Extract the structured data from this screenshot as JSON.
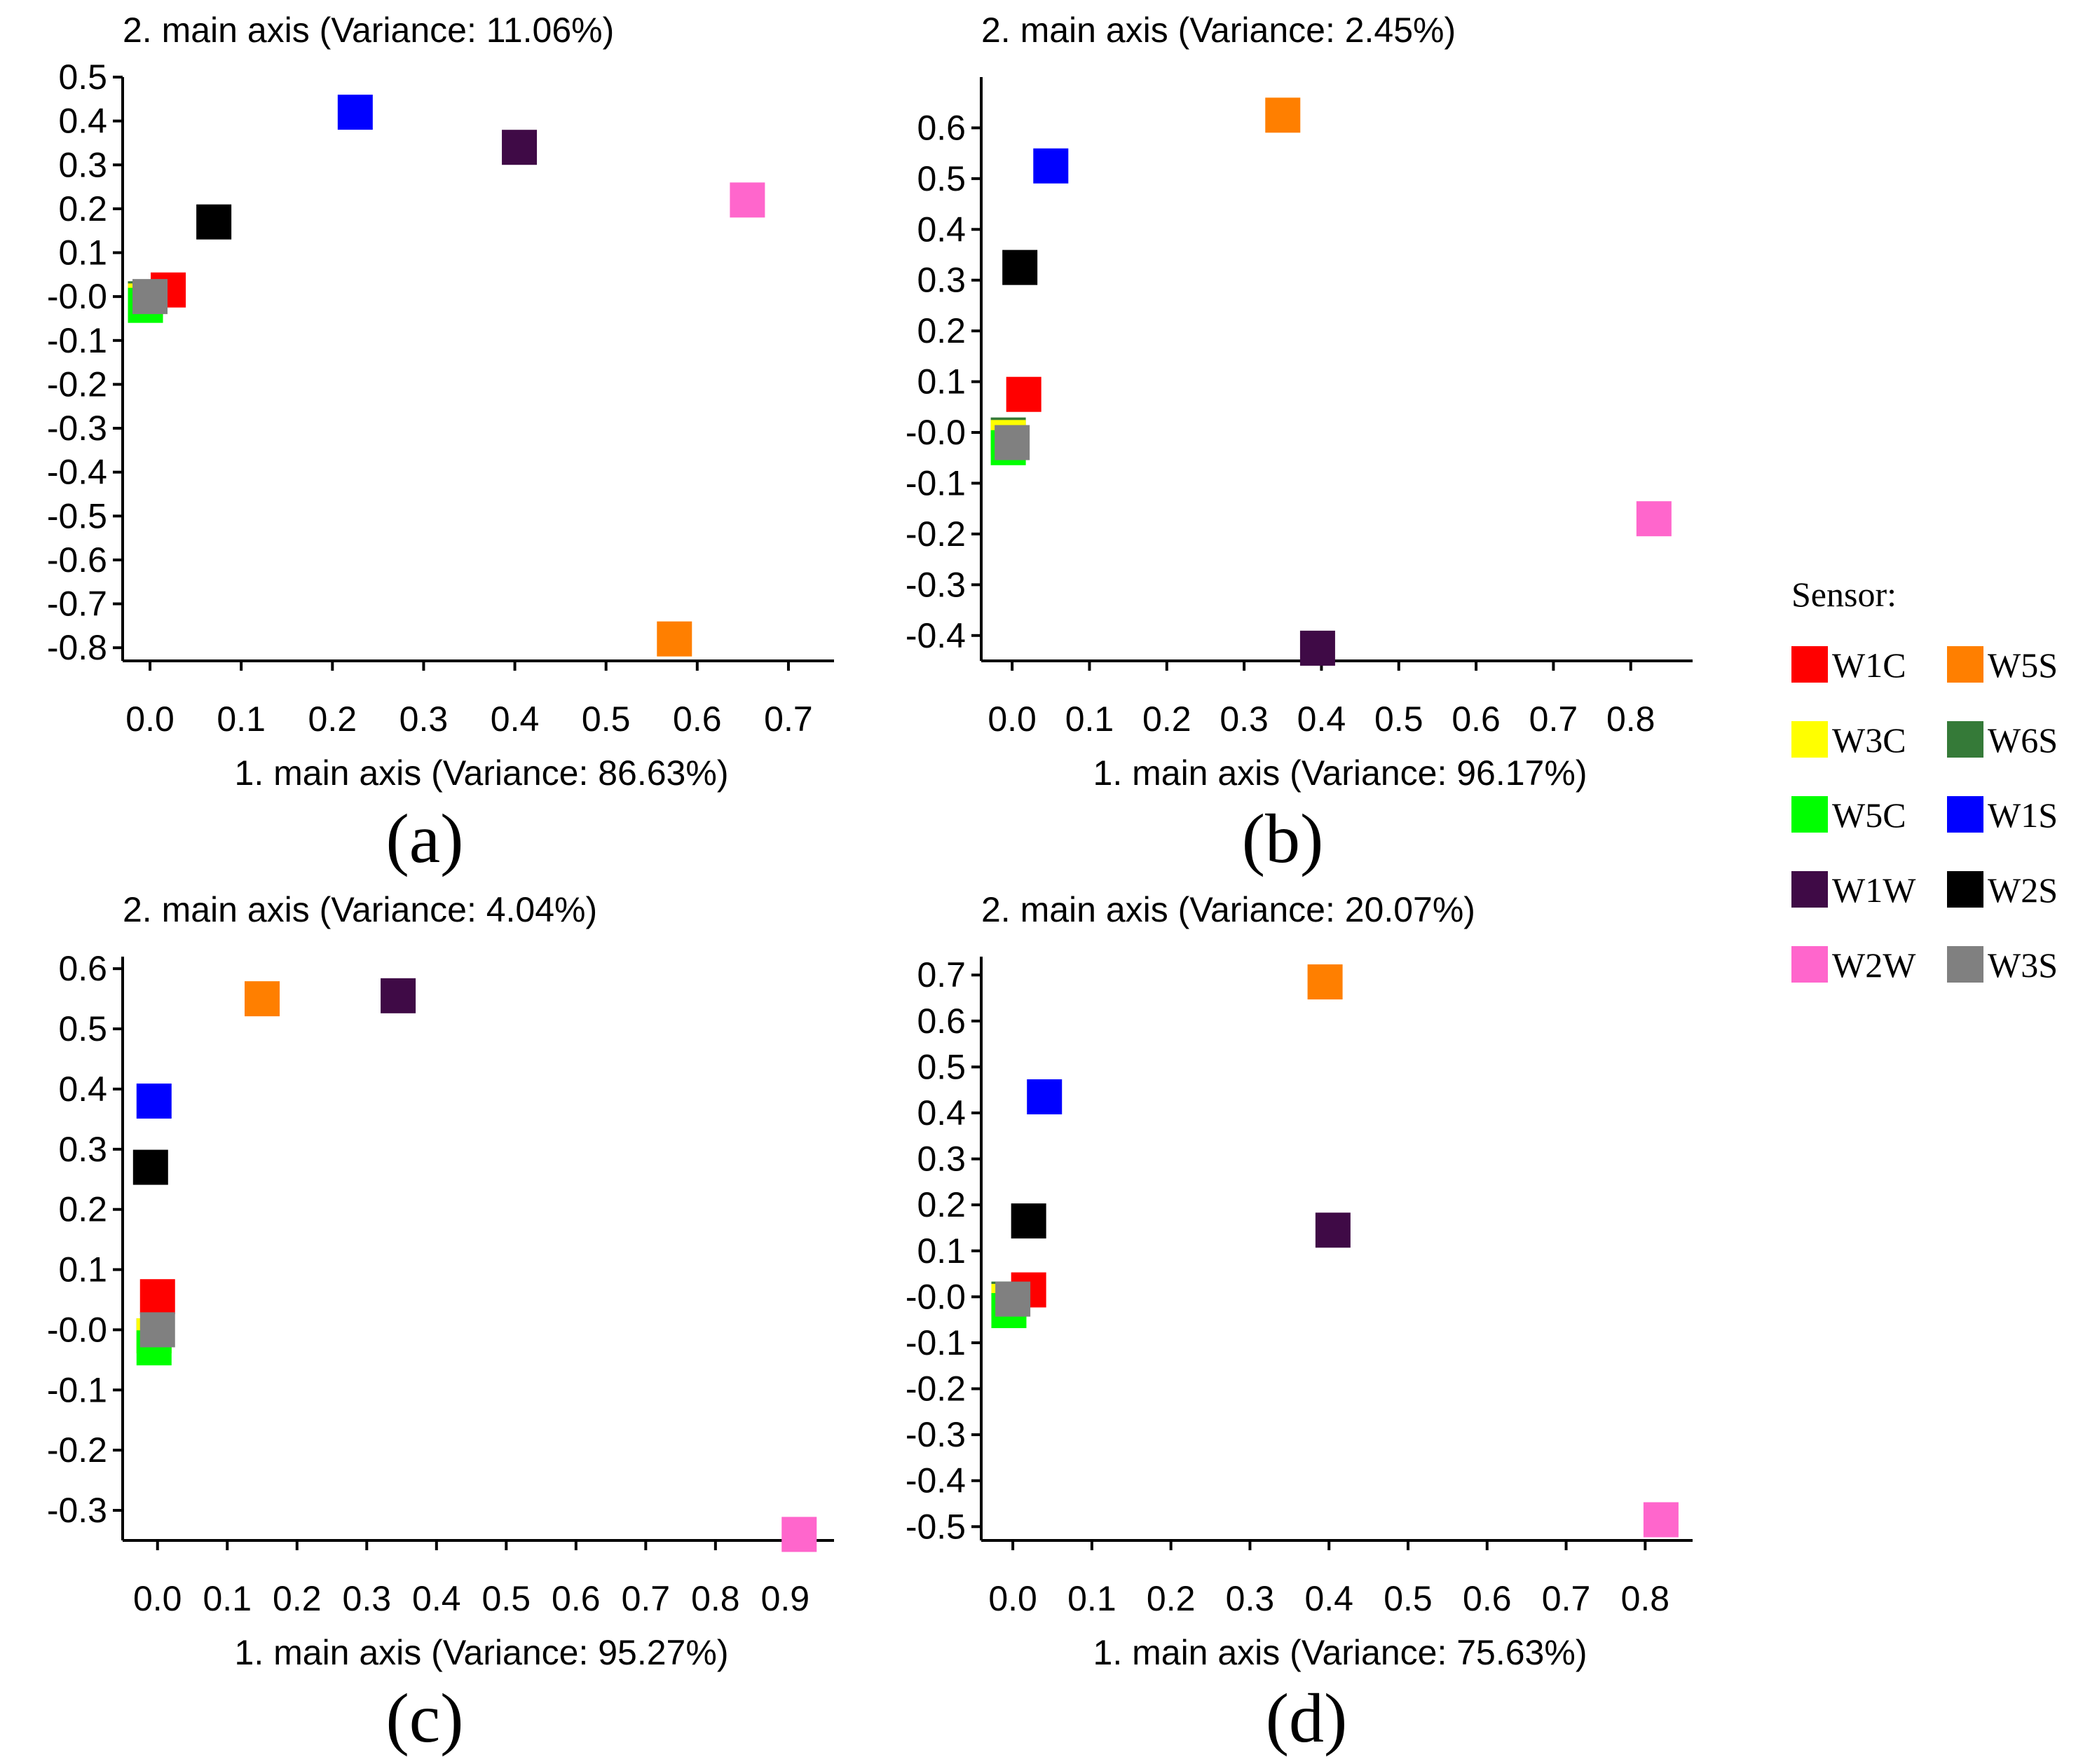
{
  "legend": {
    "title": "Sensor:",
    "items": [
      {
        "name": "W1C",
        "color": "#ff0000"
      },
      {
        "name": "W5S",
        "color": "#ff7f00"
      },
      {
        "name": "W3C",
        "color": "#ffff00"
      },
      {
        "name": "W6S",
        "color": "#357a38"
      },
      {
        "name": "W5C",
        "color": "#00ff00"
      },
      {
        "name": "W1S",
        "color": "#0000ff"
      },
      {
        "name": "W1W",
        "color": "#3f0a46"
      },
      {
        "name": "W2S",
        "color": "#000000"
      },
      {
        "name": "W2W",
        "color": "#ff66cc"
      },
      {
        "name": "W3S",
        "color": "#808080"
      }
    ]
  },
  "chart_data": [
    {
      "type": "scatter",
      "panel_label": "(a)",
      "title": "2. main axis (Variance: 11.06%)",
      "xlabel": "1. main axis (Variance: 86.63%)",
      "ylabel": "2. main axis (Variance: 11.06%)",
      "xlim": [
        -0.03,
        0.75
      ],
      "ylim": [
        -0.83,
        0.5
      ],
      "x_ticks": [
        0.0,
        0.1,
        0.2,
        0.3,
        0.4,
        0.5,
        0.6,
        0.7
      ],
      "x_tick_labels": [
        "0.0",
        "0.1",
        "0.2",
        "0.3",
        "0.4",
        "0.5",
        "0.6",
        "0.7"
      ],
      "y_ticks": [
        0.5,
        0.4,
        0.3,
        0.2,
        0.1,
        0.0,
        -0.1,
        -0.2,
        -0.3,
        -0.4,
        -0.5,
        -0.6,
        -0.7,
        -0.8
      ],
      "y_tick_labels": [
        "0.5",
        "0.4",
        "0.3",
        "0.2",
        "0.1",
        "-0.0",
        "-0.1",
        "-0.2",
        "-0.3",
        "-0.4",
        "-0.5",
        "-0.6",
        "-0.7",
        "-0.8"
      ],
      "points": [
        {
          "sensor": "W6S",
          "x": -0.005,
          "y": -0.005
        },
        {
          "sensor": "W3C",
          "x": -0.005,
          "y": -0.01
        },
        {
          "sensor": "W5C",
          "x": -0.005,
          "y": -0.02
        },
        {
          "sensor": "W1C",
          "x": 0.02,
          "y": 0.015
        },
        {
          "sensor": "W3S",
          "x": 0.0,
          "y": 0.0
        },
        {
          "sensor": "W2S",
          "x": 0.07,
          "y": 0.17
        },
        {
          "sensor": "W1S",
          "x": 0.225,
          "y": 0.42
        },
        {
          "sensor": "W1W",
          "x": 0.405,
          "y": 0.34
        },
        {
          "sensor": "W2W",
          "x": 0.655,
          "y": 0.22
        },
        {
          "sensor": "W5S",
          "x": 0.575,
          "y": -0.78
        }
      ]
    },
    {
      "type": "scatter",
      "panel_label": "(b)",
      "title": "2. main axis (Variance: 2.45%)",
      "xlabel": "1. main axis (Variance: 96.17%)",
      "ylabel": "2. main axis (Variance: 2.45%)",
      "xlim": [
        -0.04,
        0.88
      ],
      "ylim": [
        -0.45,
        0.7
      ],
      "x_ticks": [
        0.0,
        0.1,
        0.2,
        0.3,
        0.4,
        0.5,
        0.6,
        0.7,
        0.8
      ],
      "x_tick_labels": [
        "0.0",
        "0.1",
        "0.2",
        "0.3",
        "0.4",
        "0.5",
        "0.6",
        "0.7",
        "0.8"
      ],
      "y_ticks": [
        0.6,
        0.5,
        0.4,
        0.3,
        0.2,
        0.1,
        0.0,
        -0.1,
        -0.2,
        -0.3,
        -0.4
      ],
      "y_tick_labels": [
        "0.6",
        "0.5",
        "0.4",
        "0.3",
        "0.2",
        "0.1",
        "-0.0",
        "-0.1",
        "-0.2",
        "-0.3",
        "-0.4"
      ],
      "points": [
        {
          "sensor": "W6S",
          "x": -0.005,
          "y": -0.005
        },
        {
          "sensor": "W3C",
          "x": -0.005,
          "y": -0.01
        },
        {
          "sensor": "W5C",
          "x": -0.005,
          "y": -0.03
        },
        {
          "sensor": "W1C",
          "x": 0.015,
          "y": 0.075
        },
        {
          "sensor": "W3S",
          "x": 0.0,
          "y": -0.02
        },
        {
          "sensor": "W2S",
          "x": 0.01,
          "y": 0.325
        },
        {
          "sensor": "W1S",
          "x": 0.05,
          "y": 0.525
        },
        {
          "sensor": "W5S",
          "x": 0.35,
          "y": 0.625
        },
        {
          "sensor": "W2W",
          "x": 0.83,
          "y": -0.17
        },
        {
          "sensor": "W1W",
          "x": 0.395,
          "y": -0.425
        }
      ]
    },
    {
      "type": "scatter",
      "panel_label": "(c)",
      "title": "2. main axis (Variance: 4.04%)",
      "xlabel": "1. main axis (Variance: 95.27%)",
      "ylabel": "2. main axis (Variance: 4.04%)",
      "xlim": [
        -0.05,
        0.97
      ],
      "ylim": [
        -0.35,
        0.62
      ],
      "x_ticks": [
        0.0,
        0.1,
        0.2,
        0.3,
        0.4,
        0.5,
        0.6,
        0.7,
        0.8,
        0.9
      ],
      "x_tick_labels": [
        "0.0",
        "0.1",
        "0.2",
        "0.3",
        "0.4",
        "0.5",
        "0.6",
        "0.7",
        "0.8",
        "0.9"
      ],
      "y_ticks": [
        0.6,
        0.5,
        0.4,
        0.3,
        0.2,
        0.1,
        0.0,
        -0.1,
        -0.2,
        -0.3
      ],
      "y_tick_labels": [
        "0.6",
        "0.5",
        "0.4",
        "0.3",
        "0.2",
        "0.1",
        "-0.0",
        "-0.1",
        "-0.2",
        "-0.3"
      ],
      "points": [
        {
          "sensor": "W6S",
          "x": -0.005,
          "y": -0.01
        },
        {
          "sensor": "W3C",
          "x": -0.005,
          "y": -0.01
        },
        {
          "sensor": "W5C",
          "x": -0.005,
          "y": -0.03
        },
        {
          "sensor": "W1C",
          "x": 0.0,
          "y": 0.055
        },
        {
          "sensor": "W3S",
          "x": 0.0,
          "y": 0.0
        },
        {
          "sensor": "W2S",
          "x": -0.01,
          "y": 0.27
        },
        {
          "sensor": "W1S",
          "x": -0.005,
          "y": 0.38
        },
        {
          "sensor": "W5S",
          "x": 0.15,
          "y": 0.55
        },
        {
          "sensor": "W1W",
          "x": 0.345,
          "y": 0.555
        },
        {
          "sensor": "W2W",
          "x": 0.92,
          "y": -0.34
        }
      ]
    },
    {
      "type": "scatter",
      "panel_label": "(d)",
      "title": "2. main axis (Variance: 20.07%)",
      "xlabel": "1. main axis (Variance: 75.63%)",
      "ylabel": "2. main axis (Variance: 20.07%)",
      "xlim": [
        -0.04,
        0.86
      ],
      "ylim": [
        -0.53,
        0.74
      ],
      "x_ticks": [
        0.0,
        0.1,
        0.2,
        0.3,
        0.4,
        0.5,
        0.6,
        0.7,
        0.8
      ],
      "x_tick_labels": [
        "0.0",
        "0.1",
        "0.2",
        "0.3",
        "0.4",
        "0.5",
        "0.6",
        "0.7",
        "0.8"
      ],
      "y_ticks": [
        0.7,
        0.6,
        0.5,
        0.4,
        0.3,
        0.2,
        0.1,
        0.0,
        -0.1,
        -0.2,
        -0.3,
        -0.4,
        -0.5
      ],
      "y_tick_labels": [
        "0.7",
        "0.6",
        "0.5",
        "0.4",
        "0.3",
        "0.2",
        "0.1",
        "-0.0",
        "-0.1",
        "-0.2",
        "-0.3",
        "-0.4",
        "-0.5"
      ],
      "points": [
        {
          "sensor": "W6S",
          "x": -0.005,
          "y": -0.005
        },
        {
          "sensor": "W3C",
          "x": -0.005,
          "y": -0.01
        },
        {
          "sensor": "W5C",
          "x": -0.005,
          "y": -0.03
        },
        {
          "sensor": "W1C",
          "x": 0.02,
          "y": 0.015
        },
        {
          "sensor": "W3S",
          "x": 0.0,
          "y": -0.005
        },
        {
          "sensor": "W2S",
          "x": 0.02,
          "y": 0.165
        },
        {
          "sensor": "W1S",
          "x": 0.04,
          "y": 0.435
        },
        {
          "sensor": "W5S",
          "x": 0.395,
          "y": 0.685
        },
        {
          "sensor": "W1W",
          "x": 0.405,
          "y": 0.145
        },
        {
          "sensor": "W2W",
          "x": 0.82,
          "y": -0.485
        }
      ]
    }
  ]
}
